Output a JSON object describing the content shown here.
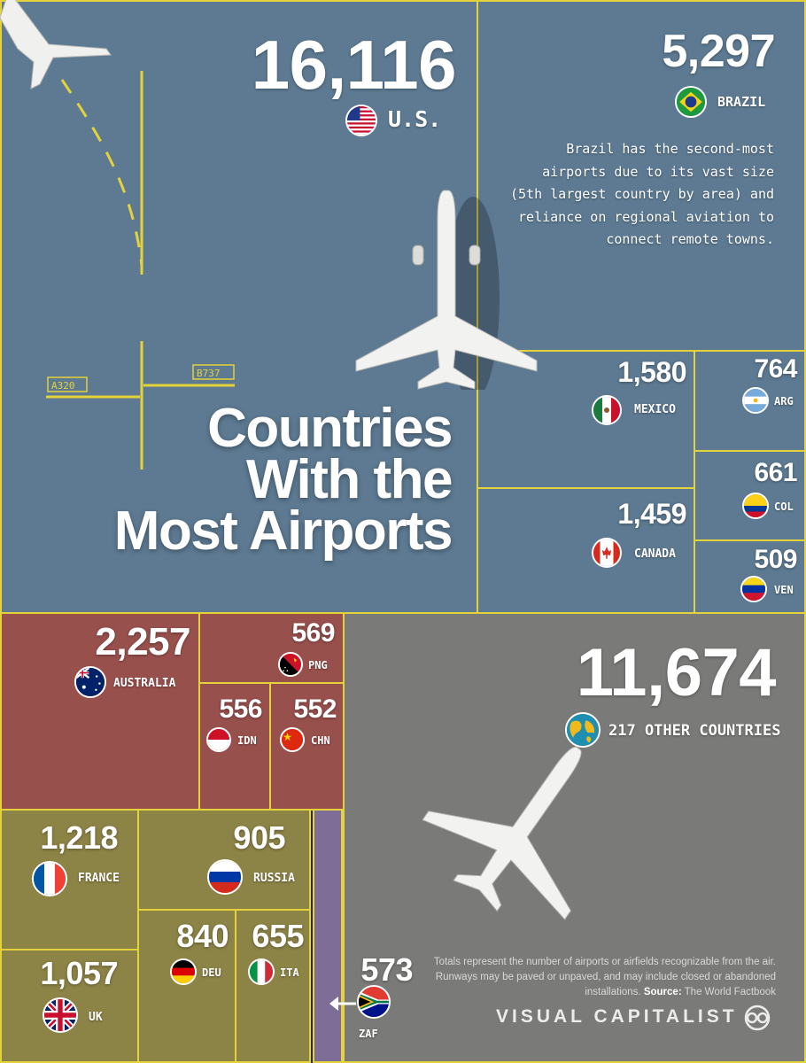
{
  "title": "Countries With the Most Airports",
  "title_lines": [
    "Countries",
    "With the",
    "Most Airports"
  ],
  "brazil_note": "Brazil has the second-most airports due to its vast size (5th largest country by area) and reliance on regional aviation to connect remote towns.",
  "footnote": {
    "text": "Totals represent the number of airports or airfields recognizable from the air. Runways may be paved or unpaved, and may include closed or abandoned installations.",
    "source_label": "Source:",
    "source": "The World Factbook"
  },
  "brand": "VISUAL CAPITALIST",
  "runway_markings": [
    "A320",
    "B737"
  ],
  "colors": {
    "americas": "#5d7a92",
    "oceania_asia": "#98504d",
    "europe": "#8c8346",
    "other": "#7a7a78",
    "africa": "#7d6d97",
    "border": "#e3d23a"
  },
  "chart_data": {
    "type": "treemap",
    "title": "Countries With the Most Airports",
    "unit": "airports",
    "groups": [
      {
        "name": "americas",
        "items": [
          "us",
          "brazil",
          "mexico",
          "argentina",
          "canada",
          "colombia",
          "venezuela"
        ]
      },
      {
        "name": "oceania_asia",
        "items": [
          "australia",
          "png",
          "indonesia",
          "china"
        ]
      },
      {
        "name": "europe",
        "items": [
          "france",
          "russia",
          "uk",
          "germany",
          "italy"
        ]
      },
      {
        "name": "africa",
        "items": [
          "south_africa"
        ]
      },
      {
        "name": "other",
        "items": [
          "other"
        ]
      }
    ],
    "items": [
      {
        "id": "us",
        "label": "U.S.",
        "value": 16116,
        "display": "16,116",
        "flag": "us-flag-icon"
      },
      {
        "id": "brazil",
        "label": "BRAZIL",
        "value": 5297,
        "display": "5,297",
        "flag": "brazil-flag-icon"
      },
      {
        "id": "mexico",
        "label": "MEXICO",
        "value": 1580,
        "display": "1,580",
        "flag": "mexico-flag-icon"
      },
      {
        "id": "argentina",
        "label": "ARG",
        "value": 764,
        "display": "764",
        "flag": "argentina-flag-icon"
      },
      {
        "id": "canada",
        "label": "CANADA",
        "value": 1459,
        "display": "1,459",
        "flag": "canada-flag-icon"
      },
      {
        "id": "colombia",
        "label": "COL",
        "value": 661,
        "display": "661",
        "flag": "colombia-flag-icon"
      },
      {
        "id": "venezuela",
        "label": "VEN",
        "value": 509,
        "display": "509",
        "flag": "venezuela-flag-icon"
      },
      {
        "id": "australia",
        "label": "AUSTRALIA",
        "value": 2257,
        "display": "2,257",
        "flag": "australia-flag-icon"
      },
      {
        "id": "png",
        "label": "PNG",
        "value": 569,
        "display": "569",
        "flag": "png-flag-icon"
      },
      {
        "id": "indonesia",
        "label": "IDN",
        "value": 556,
        "display": "556",
        "flag": "indonesia-flag-icon"
      },
      {
        "id": "china",
        "label": "CHN",
        "value": 552,
        "display": "552",
        "flag": "china-flag-icon"
      },
      {
        "id": "other",
        "label": "217 OTHER COUNTRIES",
        "value": 11674,
        "display": "11,674",
        "flag": "globe-icon"
      },
      {
        "id": "france",
        "label": "FRANCE",
        "value": 1218,
        "display": "1,218",
        "flag": "france-flag-icon"
      },
      {
        "id": "russia",
        "label": "RUSSIA",
        "value": 905,
        "display": "905",
        "flag": "russia-flag-icon"
      },
      {
        "id": "uk",
        "label": "UK",
        "value": 1057,
        "display": "1,057",
        "flag": "uk-flag-icon"
      },
      {
        "id": "germany",
        "label": "DEU",
        "value": 840,
        "display": "840",
        "flag": "germany-flag-icon"
      },
      {
        "id": "italy",
        "label": "ITA",
        "value": 655,
        "display": "655",
        "flag": "italy-flag-icon"
      },
      {
        "id": "south_africa",
        "label": "ZAF",
        "value": 573,
        "display": "573",
        "flag": "south-africa-flag-icon"
      }
    ]
  }
}
